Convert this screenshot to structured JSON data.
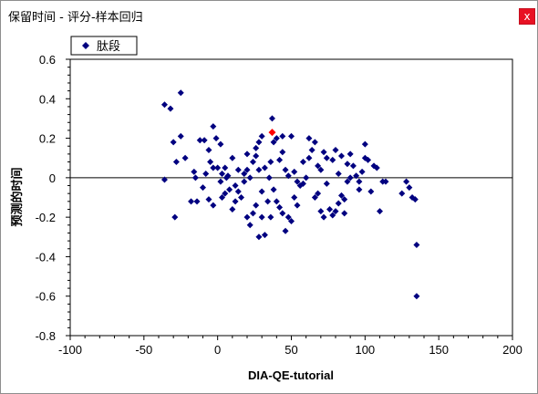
{
  "window": {
    "title": "保留时间 - 评分-样本回归",
    "close_label": "x"
  },
  "chart_data": {
    "type": "scatter",
    "xlabel": "DIA-QE-tutorial",
    "ylabel": "预测的时间",
    "xlim": [
      -100,
      200
    ],
    "ylim": [
      -0.8,
      0.6
    ],
    "x_ticks": [
      -100,
      -50,
      0,
      50,
      100,
      150,
      200
    ],
    "x_tick_labels": [
      "-100",
      "-50",
      "0",
      "50",
      "100",
      "150",
      "200"
    ],
    "y_ticks": [
      -0.8,
      -0.6,
      -0.4,
      -0.2,
      0,
      0.2,
      0.4,
      0.6
    ],
    "y_tick_labels": [
      "-0.8",
      "-0.6",
      "-0.4",
      "-0.2",
      "0",
      "0.2",
      "0.4",
      "0.6"
    ],
    "grid": false,
    "reference_line_y": 0,
    "legend_position": "top-left",
    "series": [
      {
        "name": "肽段",
        "color": "#000080",
        "marker": "diamond",
        "points": [
          [
            -36,
            0.37
          ],
          [
            -32,
            0.35
          ],
          [
            -25,
            0.43
          ],
          [
            -30,
            0.18
          ],
          [
            -25,
            0.21
          ],
          [
            -28,
            0.08
          ],
          [
            -22,
            0.1
          ],
          [
            -29,
            -0.2
          ],
          [
            -36,
            -0.01
          ],
          [
            -18,
            -0.12
          ],
          [
            -15,
            0.0
          ],
          [
            -14,
            -0.12
          ],
          [
            -12,
            0.19
          ],
          [
            -9,
            0.19
          ],
          [
            -6,
            0.14
          ],
          [
            -3,
            0.26
          ],
          [
            -1,
            0.2
          ],
          [
            2,
            0.17
          ],
          [
            -5,
            0.08
          ],
          [
            -3,
            0.05
          ],
          [
            0,
            0.05
          ],
          [
            3,
            0.02
          ],
          [
            5,
            0.05
          ],
          [
            7,
            0.01
          ],
          [
            -6,
            -0.11
          ],
          [
            -3,
            -0.14
          ],
          [
            3,
            -0.1
          ],
          [
            5,
            -0.08
          ],
          [
            8,
            -0.06
          ],
          [
            10,
            -0.16
          ],
          [
            12,
            -0.12
          ],
          [
            14,
            -0.07
          ],
          [
            16,
            -0.1
          ],
          [
            18,
            0.02
          ],
          [
            20,
            0.04
          ],
          [
            22,
            0.0
          ],
          [
            24,
            0.08
          ],
          [
            26,
            0.11
          ],
          [
            28,
            0.18
          ],
          [
            30,
            0.21
          ],
          [
            32,
            0.05
          ],
          [
            35,
            0.0
          ],
          [
            37,
            0.3
          ],
          [
            38,
            0.18
          ],
          [
            40,
            0.2
          ],
          [
            42,
            0.09
          ],
          [
            44,
            0.21
          ],
          [
            46,
            0.04
          ],
          [
            48,
            0.01
          ],
          [
            50,
            0.21
          ],
          [
            52,
            0.03
          ],
          [
            54,
            -0.02
          ],
          [
            20,
            -0.2
          ],
          [
            22,
            -0.24
          ],
          [
            24,
            -0.18
          ],
          [
            26,
            -0.14
          ],
          [
            28,
            -0.3
          ],
          [
            30,
            -0.2
          ],
          [
            32,
            -0.29
          ],
          [
            34,
            -0.12
          ],
          [
            36,
            -0.2
          ],
          [
            38,
            -0.06
          ],
          [
            40,
            -0.12
          ],
          [
            42,
            -0.15
          ],
          [
            44,
            -0.18
          ],
          [
            46,
            -0.27
          ],
          [
            48,
            -0.2
          ],
          [
            50,
            -0.22
          ],
          [
            52,
            -0.1
          ],
          [
            54,
            -0.14
          ],
          [
            56,
            -0.04
          ],
          [
            58,
            0.08
          ],
          [
            60,
            0.0
          ],
          [
            62,
            0.2
          ],
          [
            64,
            0.14
          ],
          [
            66,
            0.18
          ],
          [
            68,
            0.06
          ],
          [
            70,
            0.04
          ],
          [
            72,
            0.13
          ],
          [
            74,
            0.1
          ],
          [
            76,
            -0.16
          ],
          [
            78,
            -0.19
          ],
          [
            80,
            -0.17
          ],
          [
            82,
            -0.13
          ],
          [
            84,
            -0.09
          ],
          [
            86,
            -0.11
          ],
          [
            88,
            -0.02
          ],
          [
            90,
            0.0
          ],
          [
            92,
            0.06
          ],
          [
            94,
            0.01
          ],
          [
            96,
            -0.02
          ],
          [
            98,
            0.03
          ],
          [
            100,
            0.17
          ],
          [
            102,
            0.09
          ],
          [
            104,
            -0.07
          ],
          [
            106,
            0.06
          ],
          [
            108,
            0.05
          ],
          [
            110,
            -0.17
          ],
          [
            112,
            -0.02
          ],
          [
            114,
            -0.02
          ],
          [
            125,
            -0.08
          ],
          [
            128,
            -0.02
          ],
          [
            130,
            -0.05
          ],
          [
            132,
            -0.1
          ],
          [
            134,
            -0.11
          ],
          [
            135,
            -0.34
          ],
          [
            135,
            -0.6
          ],
          [
            86,
            -0.18
          ],
          [
            80,
            0.14
          ],
          [
            74,
            -0.03
          ],
          [
            68,
            -0.08
          ],
          [
            90,
            0.12
          ],
          [
            100,
            0.1
          ],
          [
            96,
            -0.06
          ],
          [
            84,
            0.11
          ],
          [
            62,
            0.1
          ],
          [
            58,
            -0.03
          ],
          [
            44,
            0.13
          ],
          [
            36,
            0.08
          ],
          [
            28,
            0.04
          ],
          [
            18,
            -0.02
          ],
          [
            14,
            0.04
          ],
          [
            10,
            0.1
          ],
          [
            6,
            0.0
          ],
          [
            2,
            -0.02
          ],
          [
            -8,
            0.02
          ],
          [
            -10,
            -0.05
          ],
          [
            -16,
            0.03
          ],
          [
            30,
            -0.07
          ],
          [
            26,
            0.15
          ],
          [
            20,
            0.12
          ],
          [
            12,
            -0.04
          ],
          [
            66,
            -0.1
          ],
          [
            70,
            -0.17
          ],
          [
            72,
            -0.2
          ],
          [
            78,
            0.09
          ],
          [
            82,
            0.02
          ],
          [
            88,
            0.07
          ]
        ]
      }
    ],
    "highlighted_point": {
      "x": 37,
      "y": 0.23,
      "color": "#ff0000"
    }
  }
}
